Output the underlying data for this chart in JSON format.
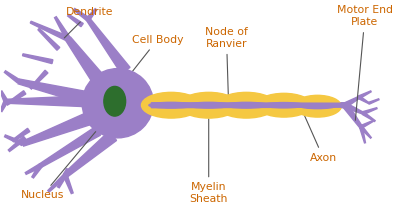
{
  "bg_color": "#ffffff",
  "dendrite_color": "#9b7fc7",
  "nucleus_color": "#2d6e2d",
  "myelin_color": "#f5c842",
  "label_color": "#cc6600",
  "line_color": "#555555",
  "labels": {
    "dendrite": "Dendrite",
    "cell_body": "Cell Body",
    "nucleus": "Nucleus",
    "node_of_ranvier": "Node of\nRanvier",
    "myelin_sheath": "Myelin\nSheath",
    "axon": "Axon",
    "motor_end_plate": "Motor End\nPlate"
  },
  "figsize": [
    4.0,
    2.15
  ],
  "dpi": 100
}
